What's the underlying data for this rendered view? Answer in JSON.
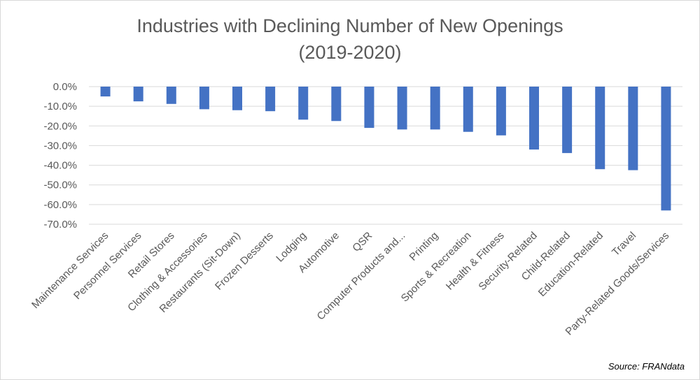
{
  "chart_data": {
    "type": "bar",
    "title_line1": "Industries with Declining Number of New Openings",
    "title_line2": "(2019-2020)",
    "xlabel": "",
    "ylabel": "",
    "source": "Source: FRANdata",
    "categories": [
      "Maintenance Services",
      "Personnel Services",
      "Retail Stores",
      "Clothing & Accessories",
      "Restaurants (Sit-Down)",
      "Frozen Desserts",
      "Lodging",
      "Automotive",
      "QSR",
      "Computer Products and...",
      "Printing",
      "Sports & Recreation",
      "Health & Fitness",
      "Security-Related",
      "Child-Related",
      "Education-Related",
      "Travel",
      "Party-Related Goods/Services"
    ],
    "values": [
      -5.0,
      -7.5,
      -8.8,
      -11.5,
      -12.0,
      -12.5,
      -16.8,
      -17.5,
      -21.0,
      -21.8,
      -21.8,
      -23.0,
      -24.8,
      -32.0,
      -33.8,
      -42.0,
      -42.5,
      -63.0
    ],
    "yticks": [
      "0.0%",
      "-10.0%",
      "-20.0%",
      "-30.0%",
      "-40.0%",
      "-50.0%",
      "-60.0%",
      "-70.0%"
    ],
    "ylim": [
      -70,
      0
    ],
    "grid": true,
    "bar_color": "#4472C4",
    "grid_color": "#d9d9d9",
    "legend": "none"
  }
}
